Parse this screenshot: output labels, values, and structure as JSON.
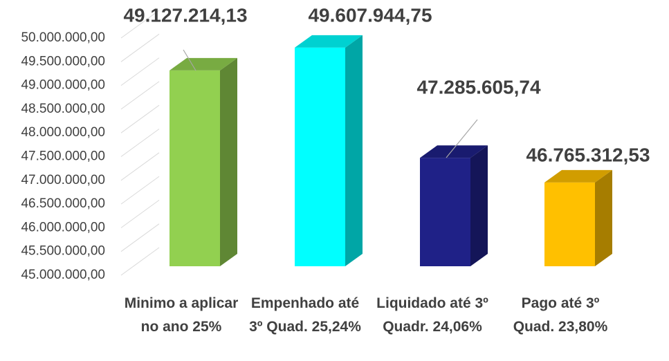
{
  "chart_data": {
    "type": "bar3d",
    "categories": [
      "Minimo a aplicar no ano 25%",
      "Empenhado até 3º Quad. 25,24%",
      "Liquidado até 3º Quadr. 24,06%",
      "Pago até 3º Quad. 23,80%"
    ],
    "values": [
      49127214.13,
      49607944.75,
      47285605.74,
      46765312.53
    ],
    "value_labels": [
      "49.127.214,13",
      "49.607.944,75",
      "47.285.605,74",
      "46.765.312,53"
    ],
    "colors": [
      "#92d050",
      "#00ffff",
      "#1f2187",
      "#ffc000"
    ],
    "ylim": [
      45000000,
      50000000
    ],
    "yticks": [
      {
        "value": 45000000,
        "label": "45.000.000,00"
      },
      {
        "value": 45500000,
        "label": "45.500.000,00"
      },
      {
        "value": 46000000,
        "label": "46.000.000,00"
      },
      {
        "value": 46500000,
        "label": "46.500.000,00"
      },
      {
        "value": 47000000,
        "label": "47.000.000,00"
      },
      {
        "value": 47500000,
        "label": "47.500.000,00"
      },
      {
        "value": 48000000,
        "label": "48.000.000,00"
      },
      {
        "value": 48500000,
        "label": "48.500.000,00"
      },
      {
        "value": 49000000,
        "label": "49.000.000,00"
      },
      {
        "value": 49500000,
        "label": "49.500.000,00"
      },
      {
        "value": 50000000,
        "label": "50.000.000,00"
      }
    ],
    "grid": true
  }
}
